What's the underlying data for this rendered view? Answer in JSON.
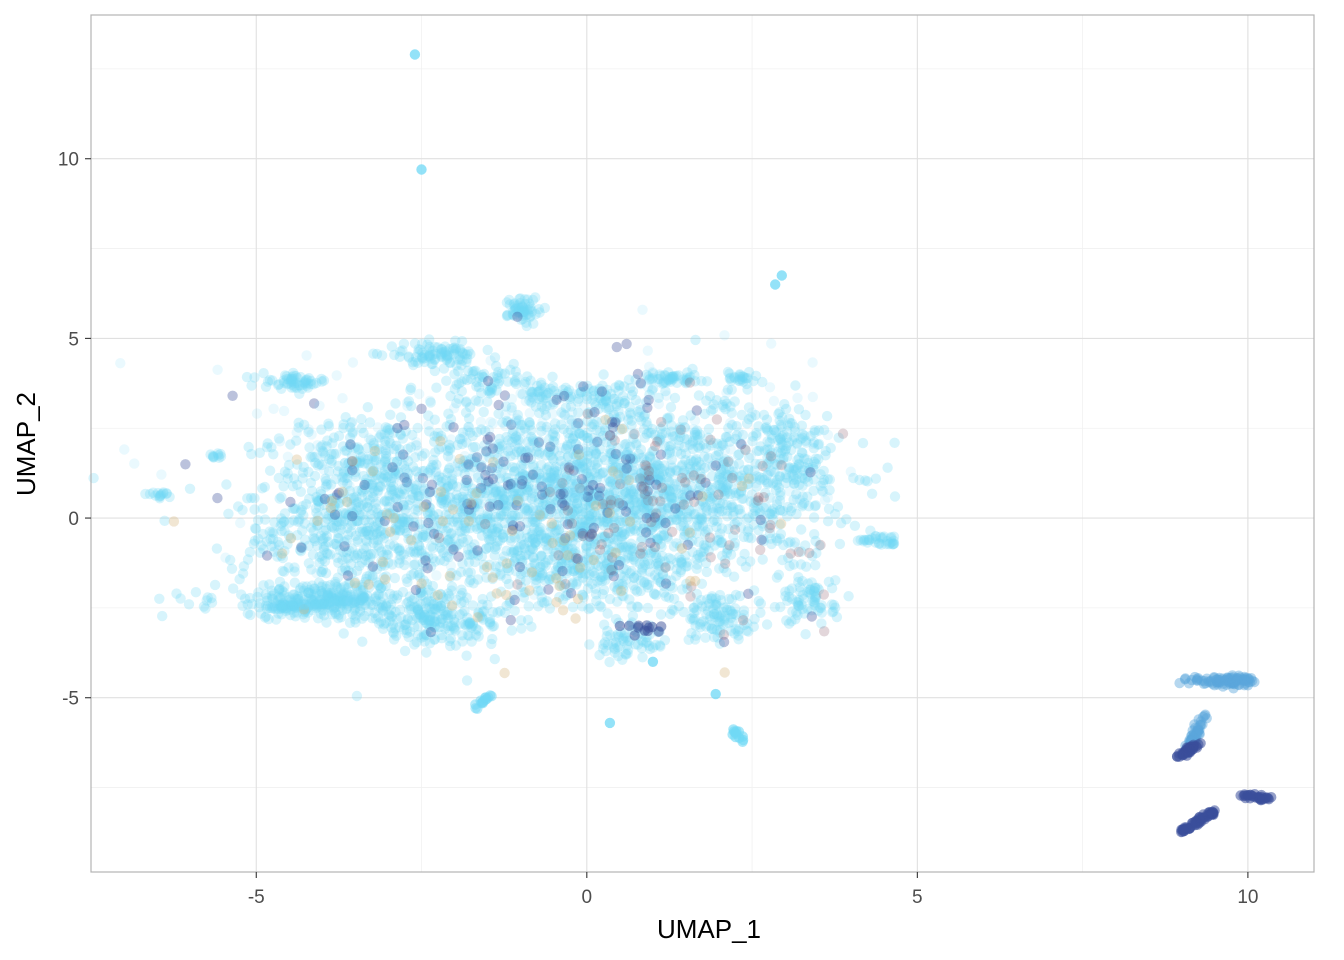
{
  "chart_data": {
    "type": "scatter",
    "title": "",
    "xlabel": "UMAP_1",
    "ylabel": "UMAP_2",
    "xlim": [
      -7.5,
      11.0
    ],
    "ylim": [
      -9.85,
      14.0
    ],
    "x_ticks": [
      -5,
      0,
      5,
      10
    ],
    "x_tick_labels": [
      "-5",
      "0",
      "5",
      "10"
    ],
    "y_ticks": [
      -5,
      0,
      5,
      10
    ],
    "y_tick_labels": [
      "-5",
      "0",
      "5",
      "10"
    ],
    "grid": true,
    "legend": "none",
    "colors": {
      "main": "#6fd8f5",
      "mid_blue": "#5ba7dc",
      "dark_blue": "#3b4f9a",
      "brown": "#8a5a6a",
      "tan": "#d8b880",
      "panel_border": "#b3b3b3",
      "grid_major": "#e0e0e0",
      "grid_minor": "#f1f1f1"
    },
    "clusters": [
      {
        "cx": -1.0,
        "cy": 0.5,
        "sx": 1.6,
        "sy": 1.3,
        "n": 1400,
        "color": "main"
      },
      {
        "cx": 1.5,
        "cy": 0.7,
        "sx": 1.1,
        "sy": 1.2,
        "n": 700,
        "color": "main"
      },
      {
        "cx": -3.5,
        "cy": -0.5,
        "sx": 0.9,
        "sy": 0.9,
        "n": 350,
        "color": "main"
      },
      {
        "cx": -4.0,
        "cy": -2.3,
        "sx": 0.8,
        "sy": 0.25,
        "n": 300,
        "color": "main"
      },
      {
        "cx": -2.3,
        "cy": -2.9,
        "sx": 0.55,
        "sy": 0.3,
        "n": 200,
        "color": "main"
      },
      {
        "cx": -3.5,
        "cy": 1.6,
        "sx": 0.5,
        "sy": 0.5,
        "n": 120,
        "color": "main"
      },
      {
        "cx": -4.4,
        "cy": 3.8,
        "sx": 0.25,
        "sy": 0.1,
        "n": 60,
        "color": "main"
      },
      {
        "cx": -2.3,
        "cy": 4.55,
        "sx": 0.35,
        "sy": 0.15,
        "n": 90,
        "color": "main"
      },
      {
        "cx": -1.5,
        "cy": 3.8,
        "sx": 0.35,
        "sy": 0.25,
        "n": 70,
        "color": "main"
      },
      {
        "cx": -0.4,
        "cy": 3.4,
        "sx": 0.4,
        "sy": 0.2,
        "n": 60,
        "color": "main"
      },
      {
        "cx": 0.5,
        "cy": 3.2,
        "sx": 0.3,
        "sy": 0.3,
        "n": 50,
        "color": "main"
      },
      {
        "cx": 1.2,
        "cy": 3.9,
        "sx": 0.3,
        "sy": 0.08,
        "n": 50,
        "color": "main"
      },
      {
        "cx": 2.35,
        "cy": 3.9,
        "sx": 0.12,
        "sy": 0.1,
        "n": 25,
        "color": "main"
      },
      {
        "cx": -0.95,
        "cy": 5.8,
        "sx": 0.12,
        "sy": 0.2,
        "n": 60,
        "color": "main"
      },
      {
        "cx": 3.0,
        "cy": 2.2,
        "sx": 0.3,
        "sy": 0.4,
        "n": 70,
        "color": "main"
      },
      {
        "cx": 3.2,
        "cy": 1.2,
        "sx": 0.2,
        "sy": 0.5,
        "n": 60,
        "color": "main"
      },
      {
        "cx": 3.35,
        "cy": -2.3,
        "sx": 0.2,
        "sy": 0.35,
        "n": 70,
        "color": "main"
      },
      {
        "cx": 2.0,
        "cy": -2.8,
        "sx": 0.35,
        "sy": 0.3,
        "n": 100,
        "color": "main"
      },
      {
        "cx": 0.6,
        "cy": -3.5,
        "sx": 0.25,
        "sy": 0.25,
        "n": 60,
        "color": "main"
      },
      {
        "cx": 0.3,
        "cy": -1.5,
        "sx": 0.9,
        "sy": 0.6,
        "n": 250,
        "color": "main"
      },
      {
        "cx": 4.35,
        "cy": -0.6,
        "sx": 0.2,
        "sy": 0.06,
        "n": 25,
        "color": "main"
      },
      {
        "cx": 4.6,
        "cy": -0.7,
        "sx": 0.06,
        "sy": 0.04,
        "n": 10,
        "color": "main"
      },
      {
        "cx": -5.6,
        "cy": 1.75,
        "sx": 0.06,
        "sy": 0.05,
        "n": 10,
        "color": "main"
      },
      {
        "cx": -6.5,
        "cy": 0.65,
        "sx": 0.1,
        "sy": 0.04,
        "n": 15,
        "color": "main"
      },
      {
        "cx": 2.0,
        "cy": 3.2,
        "sx": 0.15,
        "sy": 0.15,
        "n": 15,
        "color": "main"
      },
      {
        "cx": -0.8,
        "cy": 1.0,
        "sx": 1.8,
        "sy": 1.5,
        "n": 160,
        "color": "dark_blue",
        "alpha": 0.35
      },
      {
        "cx": 1.3,
        "cy": 0.4,
        "sx": 1.2,
        "sy": 1.3,
        "n": 90,
        "color": "brown",
        "alpha": 0.25
      },
      {
        "cx": -1.5,
        "cy": -0.5,
        "sx": 1.8,
        "sy": 1.4,
        "n": 80,
        "color": "tan",
        "alpha": 0.35
      },
      {
        "cx": 0.8,
        "cy": -3.05,
        "sx": 0.18,
        "sy": 0.08,
        "n": 12,
        "color": "dark_blue",
        "alpha": 0.5
      },
      {
        "cx": -0.6,
        "cy": 1.5,
        "sx": 2.0,
        "sy": 1.3,
        "n": 350,
        "color": "main",
        "alpha": 0.15
      },
      {
        "cx": 9.65,
        "cy": -4.55,
        "sx": 0.25,
        "sy": 0.08,
        "n": 70,
        "color": "mid_blue",
        "alpha": 0.45
      },
      {
        "cx": 9.9,
        "cy": -4.5,
        "sx": 0.1,
        "sy": 0.08,
        "n": 20,
        "color": "mid_blue",
        "alpha": 0.45
      }
    ],
    "segments": [
      {
        "x1": 9.05,
        "y1": -6.55,
        "x2": 9.35,
        "y2": -5.5,
        "n": 60,
        "color": "mid_blue",
        "alpha": 0.45
      },
      {
        "x1": 8.95,
        "y1": -6.65,
        "x2": 9.25,
        "y2": -6.3,
        "n": 40,
        "color": "dark_blue",
        "alpha": 0.55
      },
      {
        "x1": 9.0,
        "y1": -8.7,
        "x2": 9.5,
        "y2": -8.15,
        "n": 60,
        "color": "dark_blue",
        "alpha": 0.55
      },
      {
        "x1": 9.95,
        "y1": -7.72,
        "x2": 10.35,
        "y2": -7.82,
        "n": 30,
        "color": "dark_blue",
        "alpha": 0.55
      },
      {
        "x1": -1.7,
        "y1": -5.25,
        "x2": -1.45,
        "y2": -4.95,
        "n": 15,
        "color": "main",
        "alpha": 0.5
      },
      {
        "x1": 2.2,
        "y1": -5.9,
        "x2": 2.4,
        "y2": -6.3,
        "n": 12,
        "color": "main",
        "alpha": 0.6
      },
      {
        "x1": -4.8,
        "y1": -2.5,
        "x2": -3.3,
        "y2": -2.2,
        "n": 50,
        "color": "main",
        "alpha": 0.3
      }
    ],
    "points": [
      {
        "x": -2.6,
        "y": 12.9,
        "color": "main"
      },
      {
        "x": -2.5,
        "y": 9.7,
        "color": "main"
      },
      {
        "x": 0.35,
        "y": -5.7,
        "color": "main"
      },
      {
        "x": 1.95,
        "y": -4.9,
        "color": "main"
      },
      {
        "x": 2.95,
        "y": 6.75,
        "color": "main"
      },
      {
        "x": 2.85,
        "y": 6.5,
        "color": "main"
      },
      {
        "x": 1.0,
        "y": -4.0,
        "color": "main"
      }
    ]
  }
}
